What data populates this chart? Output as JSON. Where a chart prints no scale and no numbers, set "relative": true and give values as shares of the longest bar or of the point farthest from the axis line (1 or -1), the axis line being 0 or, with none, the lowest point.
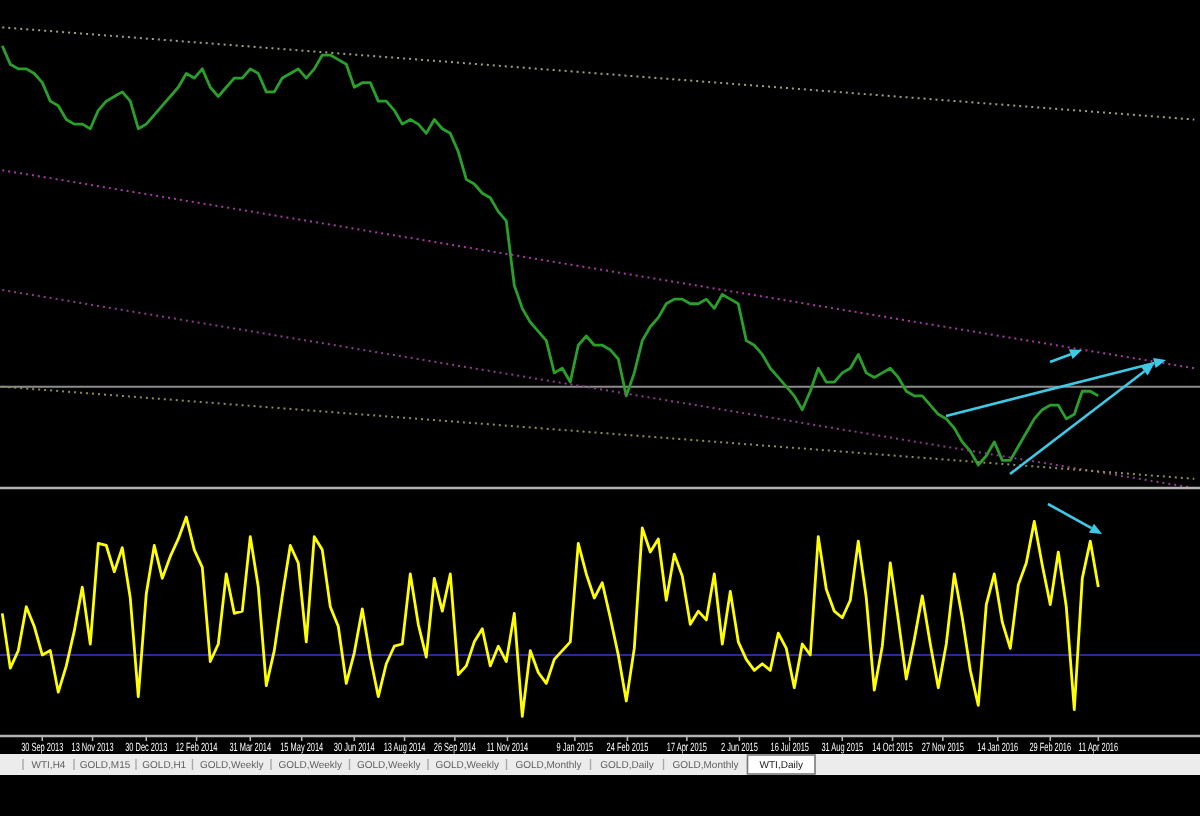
{
  "chart_data": [
    {
      "type": "line",
      "relative": true,
      "tick_labels": false,
      "xlim": [
        "2013-08-24",
        "2016-07-09"
      ],
      "x": [
        "2013-08-26",
        "2013-09-02",
        "2013-09-09",
        "2013-09-16",
        "2013-09-23",
        "2013-09-30",
        "2013-10-07",
        "2013-10-14",
        "2013-10-21",
        "2013-10-28",
        "2013-11-04",
        "2013-11-11",
        "2013-11-18",
        "2013-11-25",
        "2013-12-02",
        "2013-12-09",
        "2013-12-16",
        "2013-12-23",
        "2013-12-30",
        "2014-01-06",
        "2014-01-13",
        "2014-01-20",
        "2014-01-27",
        "2014-02-03",
        "2014-02-10",
        "2014-02-17",
        "2014-02-24",
        "2014-03-03",
        "2014-03-10",
        "2014-03-17",
        "2014-03-24",
        "2014-03-31",
        "2014-04-07",
        "2014-04-14",
        "2014-04-21",
        "2014-04-28",
        "2014-05-05",
        "2014-05-12",
        "2014-05-19",
        "2014-05-26",
        "2014-06-02",
        "2014-06-09",
        "2014-06-16",
        "2014-06-23",
        "2014-06-30",
        "2014-07-07",
        "2014-07-14",
        "2014-07-21",
        "2014-07-28",
        "2014-08-04",
        "2014-08-11",
        "2014-08-18",
        "2014-08-25",
        "2014-09-01",
        "2014-09-08",
        "2014-09-15",
        "2014-09-22",
        "2014-09-29",
        "2014-10-06",
        "2014-10-13",
        "2014-10-20",
        "2014-10-27",
        "2014-11-03",
        "2014-11-10",
        "2014-11-17",
        "2014-11-24",
        "2014-12-01",
        "2014-12-08",
        "2014-12-15",
        "2014-12-22",
        "2014-12-29",
        "2015-01-05",
        "2015-01-12",
        "2015-01-19",
        "2015-01-26",
        "2015-02-02",
        "2015-02-09",
        "2015-02-16",
        "2015-02-23",
        "2015-03-02",
        "2015-03-09",
        "2015-03-16",
        "2015-03-23",
        "2015-03-30",
        "2015-04-06",
        "2015-04-13",
        "2015-04-20",
        "2015-04-27",
        "2015-05-04",
        "2015-05-11",
        "2015-05-18",
        "2015-05-25",
        "2015-06-01",
        "2015-06-08",
        "2015-06-15",
        "2015-06-22",
        "2015-06-29",
        "2015-07-06",
        "2015-07-13",
        "2015-07-20",
        "2015-07-27",
        "2015-08-03",
        "2015-08-10",
        "2015-08-17",
        "2015-08-24",
        "2015-08-31",
        "2015-09-07",
        "2015-09-14",
        "2015-09-21",
        "2015-09-28",
        "2015-10-05",
        "2015-10-12",
        "2015-10-19",
        "2015-10-26",
        "2015-11-02",
        "2015-11-09",
        "2015-11-16",
        "2015-11-23",
        "2015-11-30",
        "2015-12-07",
        "2015-12-14",
        "2015-12-21",
        "2015-12-28",
        "2016-01-04",
        "2016-01-11",
        "2016-01-18",
        "2016-01-25",
        "2016-02-01",
        "2016-02-08",
        "2016-02-15",
        "2016-02-22",
        "2016-02-29",
        "2016-03-07",
        "2016-03-14",
        "2016-03-21",
        "2016-03-28",
        "2016-04-04",
        "2016-04-11"
      ],
      "series": [
        {
          "color": "#2aa02a",
          "values": [
            0.96,
            0.92,
            0.91,
            0.91,
            0.9,
            0.88,
            0.84,
            0.83,
            0.8,
            0.79,
            0.79,
            0.78,
            0.82,
            0.84,
            0.85,
            0.86,
            0.84,
            0.78,
            0.79,
            0.81,
            0.83,
            0.85,
            0.87,
            0.9,
            0.89,
            0.91,
            0.87,
            0.85,
            0.87,
            0.89,
            0.89,
            0.91,
            0.9,
            0.86,
            0.86,
            0.89,
            0.9,
            0.91,
            0.89,
            0.91,
            0.94,
            0.94,
            0.93,
            0.92,
            0.87,
            0.88,
            0.88,
            0.84,
            0.84,
            0.82,
            0.79,
            0.8,
            0.79,
            0.77,
            0.8,
            0.78,
            0.77,
            0.73,
            0.67,
            0.66,
            0.64,
            0.63,
            0.6,
            0.58,
            0.44,
            0.39,
            0.36,
            0.34,
            0.32,
            0.25,
            0.26,
            0.23,
            0.31,
            0.33,
            0.31,
            0.31,
            0.3,
            0.28,
            0.2,
            0.25,
            0.32,
            0.35,
            0.37,
            0.4,
            0.41,
            0.41,
            0.4,
            0.4,
            0.41,
            0.39,
            0.42,
            0.41,
            0.4,
            0.32,
            0.31,
            0.29,
            0.26,
            0.24,
            0.22,
            0.2,
            0.17,
            0.21,
            0.26,
            0.23,
            0.23,
            0.25,
            0.26,
            0.29,
            0.25,
            0.24,
            0.25,
            0.26,
            0.24,
            0.21,
            0.2,
            0.2,
            0.18,
            0.16,
            0.15,
            0.13,
            0.1,
            0.08,
            0.05,
            0.07,
            0.1,
            0.06,
            0.06,
            0.09,
            0.12,
            0.15,
            0.17,
            0.18,
            0.18,
            0.15,
            0.16,
            0.21,
            0.21,
            0.2
          ]
        },
        {
          "type": "line",
          "color": "#a0a07c",
          "line_style": "dotted",
          "x": [
            "2013-08-26",
            "2016-07-04"
          ],
          "values": [
            1.0,
            0.8
          ]
        },
        {
          "type": "line",
          "color": "#a83aa8",
          "line_style": "dotted",
          "x": [
            "2013-08-26",
            "2016-07-04"
          ],
          "values": [
            0.69,
            0.26
          ]
        },
        {
          "type": "line",
          "color": "#8e3c8e",
          "line_style": "dotted",
          "x": [
            "2013-08-26",
            "2016-07-04"
          ],
          "values": [
            0.43,
            0.0
          ]
        },
        {
          "type": "line",
          "color": "#8e8e50",
          "line_style": "dotted",
          "x": [
            "2013-08-26",
            "2016-07-04"
          ],
          "values": [
            0.22,
            0.02
          ]
        }
      ],
      "ref_lines": [
        {
          "axis": "y",
          "value": 0.22,
          "color": "#8c8c8c"
        }
      ]
    },
    {
      "type": "line",
      "relative": true,
      "tick_labels": "x",
      "xlim": [
        "2013-08-24",
        "2016-07-09"
      ],
      "xticks": [
        {
          "value": "2013-09-30",
          "label": "30 Sep 2013"
        },
        {
          "value": "2013-11-13",
          "label": "13 Nov 2013"
        },
        {
          "value": "2013-12-30",
          "label": "30 Dec 2013"
        },
        {
          "value": "2014-02-12",
          "label": "12 Feb 2014"
        },
        {
          "value": "2014-03-31",
          "label": "31 Mar 2014"
        },
        {
          "value": "2014-05-15",
          "label": "15 May 2014"
        },
        {
          "value": "2014-06-30",
          "label": "30 Jun 2014"
        },
        {
          "value": "2014-08-13",
          "label": "13 Aug 2014"
        },
        {
          "value": "2014-09-26",
          "label": "26 Sep 2014"
        },
        {
          "value": "2014-11-11",
          "label": "11 Nov 2014"
        },
        {
          "value": "2015-01-09",
          "label": "9 Jan 2015"
        },
        {
          "value": "2015-02-24",
          "label": "24 Feb 2015"
        },
        {
          "value": "2015-04-17",
          "label": "17 Apr 2015"
        },
        {
          "value": "2015-06-02",
          "label": "2 Jun 2015"
        },
        {
          "value": "2015-07-16",
          "label": "16 Jul 2015"
        },
        {
          "value": "2015-08-31",
          "label": "31 Aug 2015"
        },
        {
          "value": "2015-10-14",
          "label": "14 Oct 2015"
        },
        {
          "value": "2015-11-27",
          "label": "27 Nov 2015"
        },
        {
          "value": "2016-01-14",
          "label": "14 Jan 2016"
        },
        {
          "value": "2016-02-29",
          "label": "29 Feb 2016"
        },
        {
          "value": "2016-04-11",
          "label": "11 Apr 2016"
        }
      ],
      "x": [
        "2013-08-26",
        "2013-09-02",
        "2013-09-09",
        "2013-09-16",
        "2013-09-23",
        "2013-09-30",
        "2013-10-07",
        "2013-10-14",
        "2013-10-21",
        "2013-10-28",
        "2013-11-04",
        "2013-11-11",
        "2013-11-18",
        "2013-11-25",
        "2013-12-02",
        "2013-12-09",
        "2013-12-16",
        "2013-12-23",
        "2013-12-30",
        "2014-01-06",
        "2014-01-13",
        "2014-01-20",
        "2014-01-27",
        "2014-02-03",
        "2014-02-10",
        "2014-02-17",
        "2014-02-24",
        "2014-03-03",
        "2014-03-10",
        "2014-03-17",
        "2014-03-24",
        "2014-03-31",
        "2014-04-07",
        "2014-04-14",
        "2014-04-21",
        "2014-04-28",
        "2014-05-05",
        "2014-05-12",
        "2014-05-19",
        "2014-05-26",
        "2014-06-02",
        "2014-06-09",
        "2014-06-16",
        "2014-06-23",
        "2014-06-30",
        "2014-07-07",
        "2014-07-14",
        "2014-07-21",
        "2014-07-28",
        "2014-08-04",
        "2014-08-11",
        "2014-08-18",
        "2014-08-25",
        "2014-09-01",
        "2014-09-08",
        "2014-09-15",
        "2014-09-22",
        "2014-09-29",
        "2014-10-06",
        "2014-10-13",
        "2014-10-20",
        "2014-10-27",
        "2014-11-03",
        "2014-11-10",
        "2014-11-17",
        "2014-11-24",
        "2014-12-01",
        "2014-12-08",
        "2014-12-15",
        "2014-12-22",
        "2014-12-29",
        "2015-01-05",
        "2015-01-12",
        "2015-01-19",
        "2015-01-26",
        "2015-02-02",
        "2015-02-09",
        "2015-02-16",
        "2015-02-23",
        "2015-03-02",
        "2015-03-09",
        "2015-03-16",
        "2015-03-23",
        "2015-03-30",
        "2015-04-06",
        "2015-04-13",
        "2015-04-20",
        "2015-04-27",
        "2015-05-04",
        "2015-05-11",
        "2015-05-18",
        "2015-05-25",
        "2015-06-01",
        "2015-06-08",
        "2015-06-15",
        "2015-06-22",
        "2015-06-29",
        "2015-07-06",
        "2015-07-13",
        "2015-07-20",
        "2015-07-27",
        "2015-08-03",
        "2015-08-10",
        "2015-08-17",
        "2015-08-24",
        "2015-08-31",
        "2015-09-07",
        "2015-09-14",
        "2015-09-21",
        "2015-09-28",
        "2015-10-05",
        "2015-10-12",
        "2015-10-19",
        "2015-10-26",
        "2015-11-02",
        "2015-11-09",
        "2015-11-16",
        "2015-11-23",
        "2015-11-30",
        "2015-12-07",
        "2015-12-14",
        "2015-12-21",
        "2015-12-28",
        "2016-01-04",
        "2016-01-11",
        "2016-01-18",
        "2016-01-25",
        "2016-02-01",
        "2016-02-08",
        "2016-02-15",
        "2016-02-22",
        "2016-02-29",
        "2016-03-07",
        "2016-03-14",
        "2016-03-21",
        "2016-03-28",
        "2016-04-04",
        "2016-04-11"
      ],
      "series": [
        {
          "color": "#ffff00",
          "values": [
            0.56,
            0.31,
            0.39,
            0.59,
            0.5,
            0.37,
            0.39,
            0.2,
            0.32,
            0.48,
            0.68,
            0.42,
            0.88,
            0.87,
            0.75,
            0.86,
            0.63,
            0.18,
            0.65,
            0.87,
            0.72,
            0.82,
            0.9,
            1.0,
            0.85,
            0.77,
            0.34,
            0.42,
            0.74,
            0.56,
            0.57,
            0.91,
            0.68,
            0.23,
            0.39,
            0.64,
            0.87,
            0.79,
            0.43,
            0.91,
            0.85,
            0.59,
            0.5,
            0.24,
            0.38,
            0.58,
            0.36,
            0.18,
            0.33,
            0.41,
            0.42,
            0.74,
            0.51,
            0.36,
            0.72,
            0.57,
            0.74,
            0.28,
            0.32,
            0.43,
            0.49,
            0.32,
            0.41,
            0.34,
            0.56,
            0.09,
            0.39,
            0.29,
            0.24,
            0.35,
            0.39,
            0.43,
            0.88,
            0.74,
            0.63,
            0.7,
            0.54,
            0.37,
            0.16,
            0.4,
            0.95,
            0.84,
            0.9,
            0.62,
            0.83,
            0.73,
            0.51,
            0.57,
            0.53,
            0.74,
            0.42,
            0.66,
            0.43,
            0.35,
            0.3,
            0.33,
            0.3,
            0.47,
            0.4,
            0.22,
            0.42,
            0.37,
            0.91,
            0.67,
            0.57,
            0.54,
            0.62,
            0.89,
            0.63,
            0.21,
            0.41,
            0.79,
            0.53,
            0.26,
            0.44,
            0.64,
            0.42,
            0.22,
            0.42,
            0.74,
            0.54,
            0.3,
            0.14,
            0.6,
            0.74,
            0.52,
            0.4,
            0.69,
            0.79,
            0.98,
            0.78,
            0.6,
            0.84,
            0.59,
            0.12,
            0.72,
            0.89,
            0.68
          ]
        }
      ],
      "ref_lines": [
        {
          "axis": "y",
          "value": 0.37,
          "color": "#2a2a92"
        }
      ],
      "annotations": [
        "WTI,H4",
        "GOLD,M15",
        "GOLD,H1",
        "GOLD,Weekly",
        "GOLD,Weekly",
        "GOLD,Weekly",
        "GOLD,Weekly",
        "GOLD,Monthly",
        "GOLD,Daily",
        "GOLD,Monthly",
        "WTI,Daily"
      ]
    }
  ]
}
